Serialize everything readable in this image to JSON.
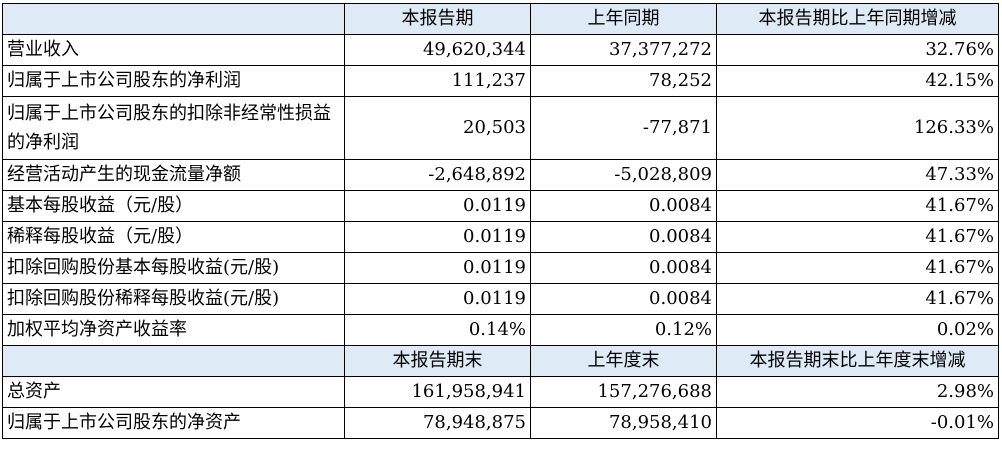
{
  "header1": {
    "col1": "本报告期",
    "col2": "上年同期",
    "col3": "本报告期比上年同期增减"
  },
  "rows1": [
    {
      "label": "营业收入",
      "v1": "49,620,344",
      "v2": "37,377,272",
      "v3": "32.76%"
    },
    {
      "label": "归属于上市公司股东的净利润",
      "v1": "111,237",
      "v2": "78,252",
      "v3": "42.15%"
    },
    {
      "label": "归属于上市公司股东的扣除非经常性损益的净利润",
      "v1": "20,503",
      "v2": "-77,871",
      "v3": "126.33%"
    },
    {
      "label": "经营活动产生的现金流量净额",
      "v1": "-2,648,892",
      "v2": "-5,028,809",
      "v3": "47.33%"
    },
    {
      "label": "基本每股收益（元/股）",
      "v1": "0.0119",
      "v2": "0.0084",
      "v3": "41.67%"
    },
    {
      "label": "稀释每股收益（元/股）",
      "v1": "0.0119",
      "v2": "0.0084",
      "v3": "41.67%"
    },
    {
      "label": "扣除回购股份基本每股收益(元/股)",
      "v1": "0.0119",
      "v2": "0.0084",
      "v3": "41.67%"
    },
    {
      "label": "扣除回购股份稀释每股收益(元/股)",
      "v1": "0.0119",
      "v2": "0.0084",
      "v3": "41.67%"
    },
    {
      "label": "加权平均净资产收益率",
      "v1": "0.14%",
      "v2": "0.12%",
      "v3": "0.02%"
    }
  ],
  "header2": {
    "col1": "本报告期末",
    "col2": "上年度末",
    "col3": "本报告期末比上年度末增减"
  },
  "rows2": [
    {
      "label": "总资产",
      "v1": "161,958,941",
      "v2": "157,276,688",
      "v3": "2.98%"
    },
    {
      "label": "归属于上市公司股东的净资产",
      "v1": "78,948,875",
      "v2": "78,958,410",
      "v3": "-0.01%"
    }
  ]
}
